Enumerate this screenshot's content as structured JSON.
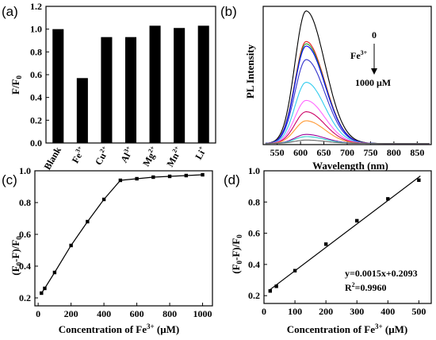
{
  "chart_data": [
    {
      "panel_label": "(a)",
      "type": "bar",
      "ylabel": "F/F",
      "ylabel_sub": "0",
      "categories": [
        "Blank",
        "Fe",
        "Cu",
        "Al",
        "Mg",
        "Mn",
        "Li"
      ],
      "category_sups": [
        "",
        "3+",
        "2+",
        "3+",
        "2+",
        "2+",
        "+"
      ],
      "values": [
        1.0,
        0.57,
        0.93,
        0.93,
        1.03,
        1.01,
        1.03
      ],
      "ylim": [
        0,
        1.2
      ],
      "yticks": [
        "0.0",
        "0.2",
        "0.4",
        "0.6",
        "0.8",
        "1.0",
        "1.2"
      ]
    },
    {
      "panel_label": "(b)",
      "type": "line",
      "xlabel": "Wavelength (nm)",
      "ylabel": "PL Intensity",
      "xlim": [
        520,
        880
      ],
      "xticks": [
        "550",
        "600",
        "650",
        "700",
        "750",
        "800",
        "850"
      ],
      "peak_x": 612,
      "series_peaks": [
        5.85,
        4.5,
        4.4,
        4.3,
        3.7,
        2.7,
        1.9,
        1.4,
        1.0,
        0.4,
        0.3,
        0.15
      ],
      "series_colors": [
        "#000000",
        "#e41a1c",
        "#2ca02c",
        "#0000ff",
        "#3333cc",
        "#33ccee",
        "#ff66ff",
        "#cc0066",
        "#ff9933",
        "#990099",
        "#33cccc",
        "#666666"
      ],
      "annotation_top": "0",
      "annotation_ion": "Fe",
      "annotation_ion_sup": "3+",
      "annotation_bottom": "1000 μM"
    },
    {
      "panel_label": "(c)",
      "type": "line",
      "xlabel": "Concentration of Fe",
      "xlabel_sup": "3+",
      "xlabel_unit": " (μM)",
      "ylabel": "(F",
      "ylabel_mid": "-F)/F",
      "ylabel_sub": "0",
      "x": [
        20,
        40,
        100,
        200,
        300,
        400,
        500,
        600,
        700,
        800,
        900,
        1000
      ],
      "y": [
        0.23,
        0.26,
        0.36,
        0.53,
        0.68,
        0.82,
        0.94,
        0.95,
        0.96,
        0.965,
        0.97,
        0.975
      ],
      "xlim": [
        -20,
        1060
      ],
      "ylim": [
        0.15,
        1.0
      ],
      "xticks": [
        "0",
        "200",
        "400",
        "600",
        "800",
        "1000"
      ],
      "yticks": [
        "0.2",
        "0.4",
        "0.6",
        "0.8",
        "1.0"
      ]
    },
    {
      "panel_label": "(d)",
      "type": "scatter",
      "xlabel": "Concentration of Fe",
      "xlabel_sup": "3+",
      "xlabel_unit": " (μM)",
      "ylabel": "(F",
      "ylabel_mid": "-F)/F",
      "ylabel_sub": "0",
      "x": [
        20,
        40,
        100,
        200,
        300,
        400,
        500
      ],
      "y": [
        0.23,
        0.26,
        0.36,
        0.53,
        0.68,
        0.82,
        0.94
      ],
      "fit_slope": 0.0015,
      "fit_intercept": 0.2093,
      "equation": "y=0.0015x+0.2093",
      "r2_label": "R",
      "r2_sup": "2",
      "r2_value": "=0.9960",
      "xlim": [
        0,
        540
      ],
      "ylim": [
        0.15,
        1.0
      ],
      "xticks": [
        "0",
        "100",
        "200",
        "300",
        "400",
        "500"
      ],
      "yticks": [
        "0.2",
        "0.4",
        "0.6",
        "0.8",
        "1.0"
      ]
    }
  ]
}
